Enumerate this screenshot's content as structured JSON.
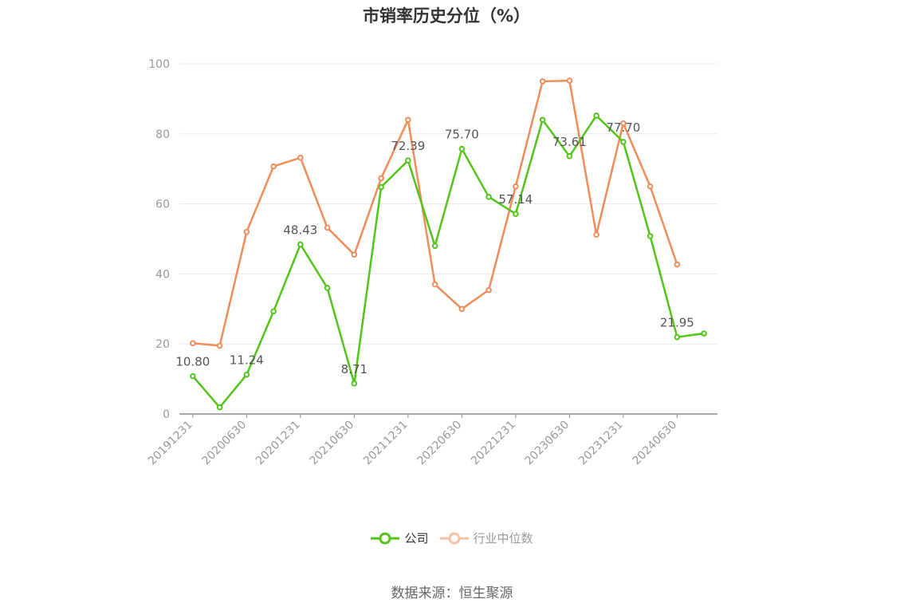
{
  "chart_data": {
    "type": "line",
    "title": "市销率历史分位（%）",
    "source": "数据来源：恒生聚源",
    "xlabel": "",
    "ylabel": "",
    "ylim": [
      0,
      100
    ],
    "yticks": [
      0,
      20,
      40,
      60,
      80,
      100
    ],
    "grid": true,
    "legend_position": "bottom",
    "x": [
      "20191231",
      "20200331",
      "20200630",
      "20200930",
      "20201231",
      "20210331",
      "20210630",
      "20210930",
      "20211231",
      "20220331",
      "20220630",
      "20220930",
      "20221231",
      "20230331",
      "20230630",
      "20230930",
      "20231231",
      "20240331",
      "20240630",
      "20240930"
    ],
    "xtick_labels": [
      "20191231",
      "20200630",
      "20201231",
      "20210630",
      "20211231",
      "20220630",
      "20221231",
      "20230630",
      "20231231",
      "20240630"
    ],
    "series": [
      {
        "name": "公司",
        "color": "#52c41a",
        "values": [
          10.8,
          1.9,
          11.24,
          29.3,
          48.43,
          36.0,
          8.71,
          64.8,
          72.39,
          48.0,
          75.7,
          62.0,
          57.14,
          84.0,
          73.61,
          85.2,
          77.7,
          50.8,
          21.95,
          23.0
        ],
        "data_labels": [
          {
            "index": 0,
            "text": "10.80"
          },
          {
            "index": 2,
            "text": "11.24"
          },
          {
            "index": 4,
            "text": "48.43"
          },
          {
            "index": 6,
            "text": "8.71"
          },
          {
            "index": 8,
            "text": "72.39"
          },
          {
            "index": 10,
            "text": "75.70"
          },
          {
            "index": 12,
            "text": "57.14"
          },
          {
            "index": 14,
            "text": "73.61"
          },
          {
            "index": 16,
            "text": "77.70"
          },
          {
            "index": 18,
            "text": "21.95"
          }
        ]
      },
      {
        "name": "行业中位数",
        "color": "#f08c5a",
        "values": [
          20.2,
          19.5,
          52.0,
          70.7,
          73.2,
          53.2,
          45.5,
          67.3,
          84.0,
          37.0,
          30.0,
          35.4,
          65.0,
          95.0,
          95.2,
          51.2,
          83.0,
          65.0,
          42.7,
          null
        ]
      }
    ]
  },
  "legend": {
    "company": "公司",
    "industry": "行业中位数"
  }
}
